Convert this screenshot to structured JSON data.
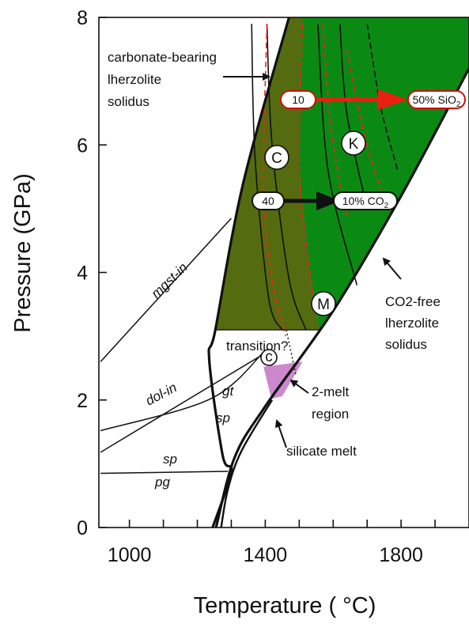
{
  "chart_data": {
    "type": "phase-diagram",
    "xlabel": "Temperature ( °C)",
    "ylabel": "Pressure (GPa)",
    "xlim": [
      910,
      2000
    ],
    "ylim": [
      0,
      8
    ],
    "xticks": [
      1000,
      1400,
      1800
    ],
    "yticks": [
      0,
      2,
      4,
      6,
      8
    ],
    "colors": {
      "carbonate_field": "#556b0f",
      "silicate_field": "#0b8a13",
      "two_melt_region": "#cc88cc",
      "red_contours": "#ee2222"
    },
    "curves": {
      "carbonate_bearing_solidus": [
        [
          1470,
          8
        ],
        [
          1335,
          5.4
        ],
        [
          1253,
          3.1
        ],
        [
          1235,
          2.64
        ],
        [
          1275,
          1.12
        ],
        [
          1300,
          0.88
        ],
        [
          1245,
          0
        ]
      ],
      "co2_free_solidus": [
        [
          2000,
          7.2
        ],
        [
          1800,
          5.2
        ],
        [
          1600,
          3.4
        ],
        [
          1400,
          1.9
        ],
        [
          1310,
          1.1
        ],
        [
          1255,
          0
        ]
      ],
      "transition_gap": [
        [
          1255,
          3.1
        ],
        [
          1560,
          3.1
        ]
      ],
      "mgst_in": [
        [
          915,
          2.6
        ],
        [
          1300,
          4.85
        ]
      ],
      "dol_in": [
        [
          915,
          1.18
        ],
        [
          1270,
          2.32
        ],
        [
          1420,
          2.8
        ]
      ],
      "gt_sp_boundary": [
        [
          915,
          1.52
        ],
        [
          1240,
          2.02
        ],
        [
          1400,
          2.78
        ]
      ],
      "sp_pg_boundary": [
        [
          915,
          0.85
        ],
        [
          1290,
          0.88
        ]
      ],
      "isopleth_a": [
        [
          1360,
          7.9
        ],
        [
          1370,
          5.8
        ],
        [
          1410,
          3.6
        ],
        [
          1450,
          3.1
        ]
      ],
      "isopleth_b": [
        [
          1405,
          7.9
        ],
        [
          1420,
          6.0
        ],
        [
          1470,
          3.9
        ],
        [
          1520,
          3.1
        ]
      ],
      "isopleth_c": [
        [
          1555,
          7.9
        ],
        [
          1585,
          5.6
        ],
        [
          1670,
          3.8
        ]
      ],
      "red_isopleth_1": [
        [
          1405,
          7.9
        ],
        [
          1395,
          5.3
        ],
        [
          1420,
          3.9
        ],
        [
          1460,
          3.0
        ]
      ],
      "red_isopleth_2": [
        [
          1510,
          7.9
        ],
        [
          1500,
          5.7
        ],
        [
          1520,
          4.5
        ],
        [
          1545,
          3.5
        ]
      ],
      "red_isopleth_3": [
        [
          1570,
          7.9
        ],
        [
          1595,
          6.2
        ],
        [
          1640,
          4.9
        ]
      ],
      "red_isopleth_4": [
        [
          1640,
          7.5
        ],
        [
          1690,
          6.2
        ],
        [
          1740,
          5.3
        ]
      ],
      "dotted_transition": [
        [
          1462,
          3.1
        ],
        [
          1490,
          2.4
        ]
      ]
    },
    "labels": {
      "carbonate_solidus": [
        "carbonate-bearing",
        "lherzolite",
        "solidus"
      ],
      "co2_free_solidus": [
        "CO2-free",
        "lherzolite",
        "solidus"
      ],
      "mgst_in": "mgst-in",
      "dol_in": "dol-in",
      "gt": "gt",
      "sp_upper": "sp",
      "sp_lower": "sp",
      "pg": "pg",
      "transition": "transition?",
      "two_melt": [
        "2-melt",
        "region"
      ],
      "silicate_melt": "silicate melt",
      "sio2_start": "10",
      "sio2_end": "50% SiO",
      "sio2_sub": "2",
      "co2_start": "40",
      "co2_end": "10% CO",
      "co2_sub": "2",
      "circle_C": "C",
      "circle_K": "K",
      "circle_M": "M",
      "circle_c_small": "c"
    }
  }
}
